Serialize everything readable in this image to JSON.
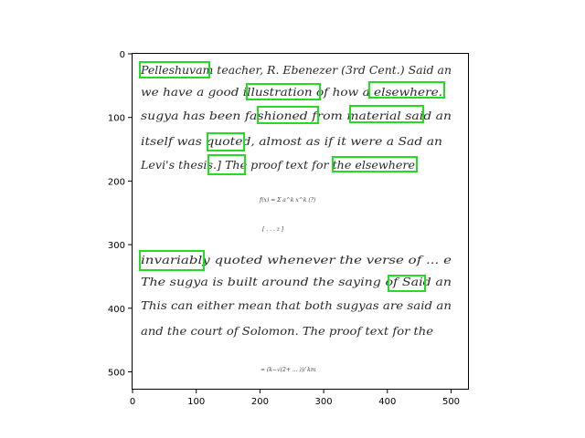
{
  "x_ticks": [
    "0",
    "100",
    "200",
    "300",
    "400",
    "500"
  ],
  "y_ticks": [
    "0",
    "100",
    "200",
    "300",
    "400",
    "500"
  ],
  "handwriting": {
    "line1": "Pelleshuvam teacher, R. Ebenezer (3rd Cent.) Said an",
    "line2": "we have a good illustration of how a elsewhere.",
    "line3": "sugya has been fashioned from material said an",
    "line4": "itself was quoted, almost as if it were a Sad an",
    "line5": "Levi's thesis.] The proof text for the elsewhere",
    "line6": "invariably quoted whenever the verse of ... e",
    "line7": "The sugya is built around the saying of Said an",
    "line8": "This can either mean that both sugyas are said an",
    "line9": "and the court of Solomon. The proof text for the"
  },
  "small_marks": {
    "formula1": "f(x) = Σ a^k x^k (?)",
    "formula2": "[ . . . z ]",
    "formula3": "= (k−√(2+ ... ))/ km"
  },
  "highlight_color": "#22dd22"
}
